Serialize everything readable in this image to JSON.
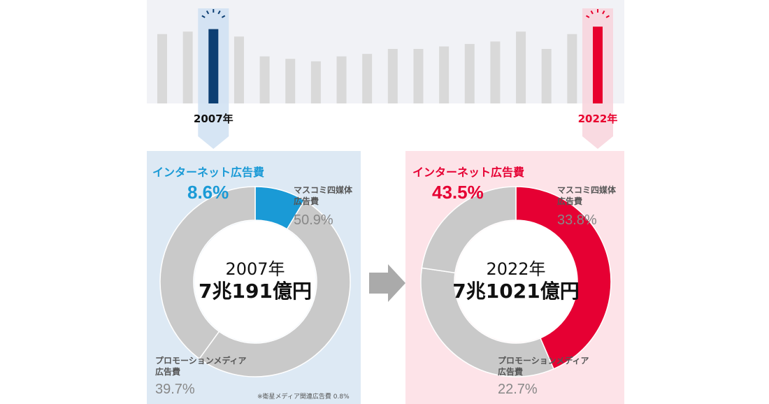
{
  "chart_data": [
    {
      "type": "bar",
      "categories": [
        null,
        null,
        "2007年",
        null,
        null,
        null,
        null,
        null,
        null,
        null,
        null,
        null,
        null,
        null,
        null,
        null,
        null,
        "2022年"
      ],
      "values": [
        6.8,
        6.9,
        7.0,
        6.7,
        5.9,
        5.8,
        5.7,
        5.9,
        6.0,
        6.2,
        6.2,
        6.3,
        6.4,
        6.5,
        6.9,
        6.2,
        6.8,
        7.1
      ],
      "colors": [
        "#d9d9d9",
        "#d9d9d9",
        "#0d3f73",
        "#d9d9d9",
        "#d9d9d9",
        "#d9d9d9",
        "#d9d9d9",
        "#d9d9d9",
        "#d9d9d9",
        "#d9d9d9",
        "#d9d9d9",
        "#d9d9d9",
        "#d9d9d9",
        "#d9d9d9",
        "#d9d9d9",
        "#d9d9d9",
        "#d9d9d9",
        "#e8002d"
      ],
      "ylim": [
        4,
        7.3
      ]
    },
    {
      "type": "pie",
      "title": "インターネット広告費",
      "center_title": "2007年",
      "center_value": "7兆191億円",
      "categories": [
        "インターネット広告費",
        "マスコミ四媒体広告費",
        "プロモーションメディア広告費"
      ],
      "values": [
        8.6,
        50.9,
        39.7
      ],
      "value_labels": [
        "8.6%",
        "50.9%",
        "39.7%"
      ],
      "colors": [
        "#1a9ad6",
        "#c9c9c9",
        "#c9c9c9"
      ],
      "note": "※衛星メディア関連広告費 0.8%"
    },
    {
      "type": "pie",
      "title": "インターネット広告費",
      "center_title": "2022年",
      "center_value": "7兆1021億円",
      "categories": [
        "インターネット広告費",
        "マスコミ四媒体広告費",
        "プロモーションメディア広告費"
      ],
      "values": [
        43.5,
        33.8,
        22.7
      ],
      "value_labels": [
        "43.5%",
        "33.8%",
        "22.7%"
      ],
      "colors": [
        "#e60033",
        "#c9c9c9",
        "#c9c9c9"
      ]
    }
  ]
}
